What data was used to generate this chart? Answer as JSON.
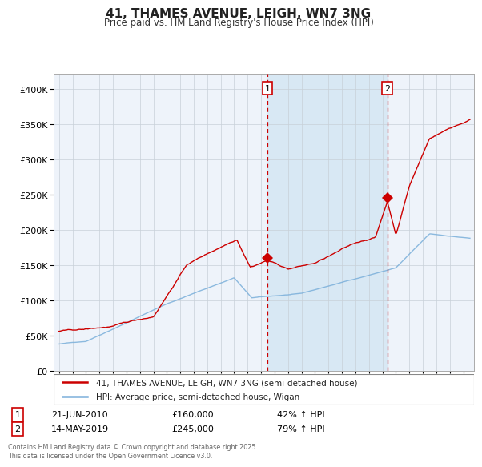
{
  "title": "41, THAMES AVENUE, LEIGH, WN7 3NG",
  "subtitle": "Price paid vs. HM Land Registry's House Price Index (HPI)",
  "legend_label_red": "41, THAMES AVENUE, LEIGH, WN7 3NG (semi-detached house)",
  "legend_label_blue": "HPI: Average price, semi-detached house, Wigan",
  "event1_date": "21-JUN-2010",
  "event1_price": 160000,
  "event1_hpi": "42% ↑ HPI",
  "event2_date": "14-MAY-2019",
  "event2_price": 245000,
  "event2_hpi": "79% ↑ HPI",
  "footnote": "Contains HM Land Registry data © Crown copyright and database right 2025.\nThis data is licensed under the Open Government Licence v3.0.",
  "red_color": "#cc0000",
  "blue_color": "#7aafda",
  "bg_color": "#eef3fa",
  "shade_color": "#d8e8f4",
  "grid_color": "#c8d0d8",
  "ylim": [
    0,
    420000
  ],
  "yticks": [
    0,
    50000,
    100000,
    150000,
    200000,
    250000,
    300000,
    350000,
    400000
  ],
  "event1_x_year": 2010.47,
  "event2_x_year": 2019.37,
  "event1_price_y": 160000,
  "event2_price_y": 245000,
  "xmin": 1994.6,
  "xmax": 2025.8
}
